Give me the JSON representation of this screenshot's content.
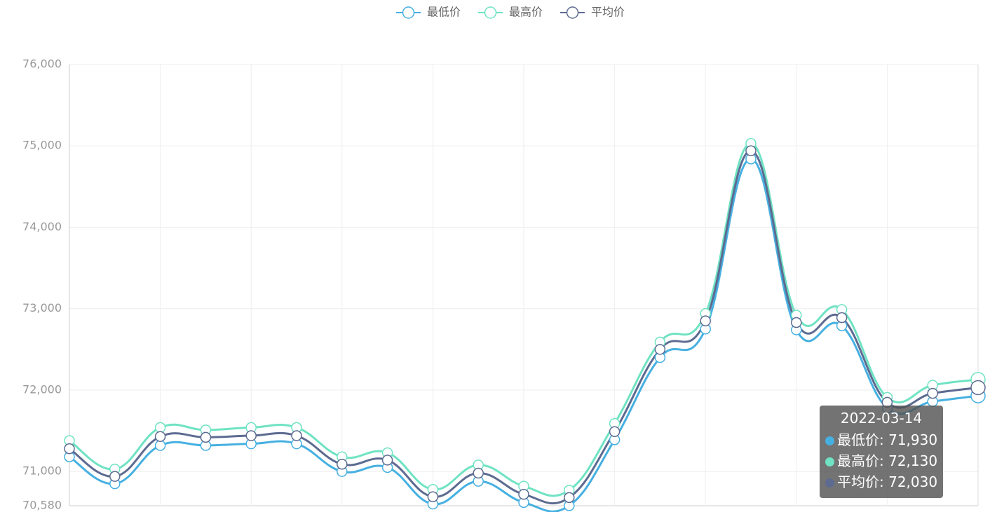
{
  "chart_data": {
    "type": "line",
    "categories": [
      null,
      null,
      null,
      null,
      null,
      null,
      null,
      null,
      null,
      null,
      null,
      null,
      null,
      null,
      null,
      null,
      null,
      null,
      null,
      null,
      "2022-03-14"
    ],
    "series": [
      {
        "name": "最低价",
        "color": "#46b0e1",
        "values": [
          71180,
          70850,
          71320,
          71320,
          71340,
          71340,
          71000,
          71050,
          70600,
          70880,
          70620,
          70580,
          71390,
          72400,
          72750,
          74840,
          72740,
          72790,
          71780,
          71860,
          71930
        ],
        "value_labels": [
          null,
          null,
          null,
          null,
          null,
          null,
          null,
          null,
          null,
          null,
          null,
          null,
          null,
          null,
          null,
          null,
          null,
          null,
          null,
          null,
          "71,930"
        ]
      },
      {
        "name": "最高价",
        "color": "#6fe3c3",
        "values": [
          71380,
          71030,
          71540,
          71510,
          71540,
          71540,
          71180,
          71230,
          70780,
          71080,
          70820,
          70770,
          71590,
          72590,
          72940,
          75030,
          72920,
          72990,
          71910,
          72060,
          72130
        ],
        "value_labels": [
          null,
          null,
          null,
          null,
          null,
          null,
          null,
          null,
          null,
          null,
          null,
          null,
          null,
          null,
          null,
          null,
          null,
          null,
          null,
          null,
          "72,130"
        ]
      },
      {
        "name": "平均价",
        "color": "#5d6b91",
        "values": [
          71280,
          70940,
          71430,
          71420,
          71440,
          71440,
          71090,
          71140,
          70690,
          70980,
          70720,
          70680,
          71490,
          72500,
          72850,
          74940,
          72830,
          72890,
          71850,
          71960,
          72030
        ],
        "value_labels": [
          null,
          null,
          null,
          null,
          null,
          null,
          null,
          null,
          null,
          null,
          null,
          null,
          null,
          null,
          null,
          null,
          null,
          null,
          null,
          null,
          "72,030"
        ]
      }
    ],
    "ylim": [
      70580,
      76000
    ],
    "yticks": [
      {
        "value": 70580,
        "label": "70,580"
      },
      {
        "value": 71000,
        "label": "71,000"
      },
      {
        "value": 72000,
        "label": "72,000"
      },
      {
        "value": 73000,
        "label": "73,000"
      },
      {
        "value": 74000,
        "label": "74,000"
      },
      {
        "value": 75000,
        "label": "75,000"
      },
      {
        "value": 76000,
        "label": "76,000"
      }
    ],
    "grid": true,
    "legend": "top"
  }
}
